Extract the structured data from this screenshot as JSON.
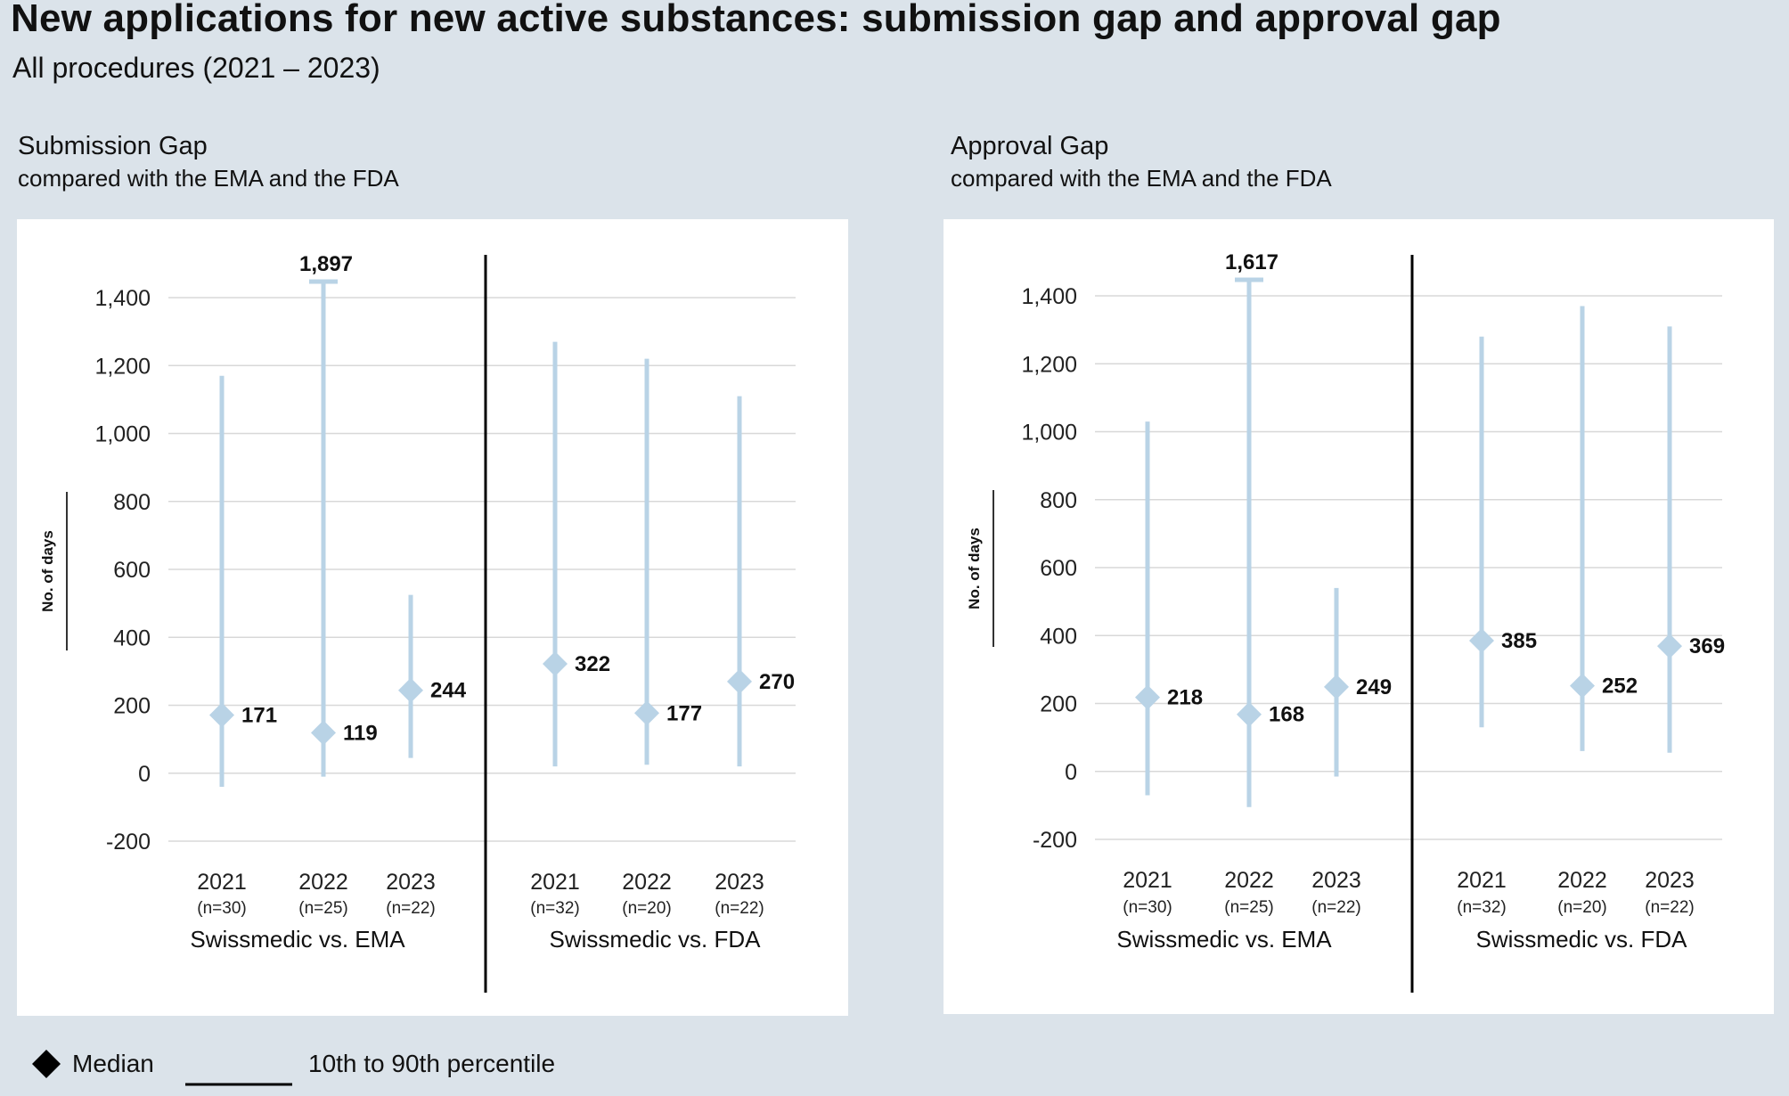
{
  "header": {
    "title": "New applications for new active substances: submission gap and approval gap",
    "subtitle": "All procedures (2021 – 2023)"
  },
  "legend": {
    "median_label": "Median",
    "range_label": "10th to 90th percentile"
  },
  "colors": {
    "background": "#dbe3ea",
    "whisker": "#b9d3e6",
    "marker": "#b9d3e6",
    "grid": "#d8d8d8",
    "divider": "#000000"
  },
  "chart_data": [
    {
      "type": "range-median",
      "title": "Submission Gap",
      "subtitle": "compared with the EMA and the FDA",
      "ylabel": "No. of days",
      "ylim": [
        -200,
        1400
      ],
      "yticks": [
        -200,
        0,
        200,
        400,
        600,
        800,
        1000,
        1200,
        1400
      ],
      "ytick_labels": [
        "-200",
        "0",
        "200",
        "400",
        "600",
        "800",
        "1,000",
        "1,200",
        "1,400"
      ],
      "grid": true,
      "groups": [
        {
          "name": "Swissmedic vs. EMA",
          "points": [
            {
              "year": "2021",
              "n": "(n=30)",
              "median": 171,
              "p10": -40,
              "p90": 1170,
              "label": "171"
            },
            {
              "year": "2022",
              "n": "(n=25)",
              "median": 119,
              "p10": -10,
              "p90": 1897,
              "label": "119",
              "clipped_label": "1,897"
            },
            {
              "year": "2023",
              "n": "(n=22)",
              "median": 244,
              "p10": 45,
              "p90": 525,
              "label": "244"
            }
          ]
        },
        {
          "name": "Swissmedic vs. FDA",
          "points": [
            {
              "year": "2021",
              "n": "(n=32)",
              "median": 322,
              "p10": 20,
              "p90": 1270,
              "label": "322"
            },
            {
              "year": "2022",
              "n": "(n=20)",
              "median": 177,
              "p10": 25,
              "p90": 1220,
              "label": "177"
            },
            {
              "year": "2023",
              "n": "(n=22)",
              "median": 270,
              "p10": 20,
              "p90": 1110,
              "label": "270"
            }
          ]
        }
      ]
    },
    {
      "type": "range-median",
      "title": "Approval Gap",
      "subtitle": "compared with the EMA and the FDA",
      "ylabel": "No. of days",
      "ylim": [
        -200,
        1400
      ],
      "yticks": [
        -200,
        0,
        200,
        400,
        600,
        800,
        1000,
        1200,
        1400
      ],
      "ytick_labels": [
        "-200",
        "0",
        "200",
        "400",
        "600",
        "800",
        "1,000",
        "1,200",
        "1,400"
      ],
      "grid": true,
      "groups": [
        {
          "name": "Swissmedic vs. EMA",
          "points": [
            {
              "year": "2021",
              "n": "(n=30)",
              "median": 218,
              "p10": -70,
              "p90": 1030,
              "label": "218"
            },
            {
              "year": "2022",
              "n": "(n=25)",
              "median": 168,
              "p10": -105,
              "p90": 1617,
              "label": "168",
              "clipped_label": "1,617"
            },
            {
              "year": "2023",
              "n": "(n=22)",
              "median": 249,
              "p10": -15,
              "p90": 540,
              "label": "249"
            }
          ]
        },
        {
          "name": "Swissmedic vs. FDA",
          "points": [
            {
              "year": "2021",
              "n": "(n=32)",
              "median": 385,
              "p10": 130,
              "p90": 1280,
              "label": "385"
            },
            {
              "year": "2022",
              "n": "(n=20)",
              "median": 252,
              "p10": 60,
              "p90": 1370,
              "label": "252"
            },
            {
              "year": "2023",
              "n": "(n=22)",
              "median": 369,
              "p10": 55,
              "p90": 1310,
              "label": "369"
            }
          ]
        }
      ]
    }
  ]
}
